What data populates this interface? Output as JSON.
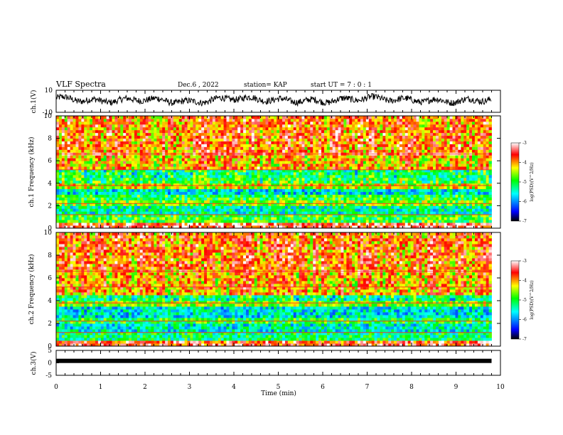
{
  "header": {
    "title": "VLF Spectra",
    "date": "Dec.6 , 2022",
    "station": "station= KAP",
    "start_ut": "start UT = 7 : 0 : 1"
  },
  "colors": {
    "waveform": "#000000",
    "colormap": [
      "#000000",
      "#0000ff",
      "#00ffff",
      "#00ff00",
      "#ffff00",
      "#ff0000",
      "#ffffff"
    ]
  },
  "chart_data": [
    {
      "type": "line",
      "panel": "ch1-waveform",
      "ylabel": "ch.1(V)",
      "ylim": [
        -10,
        10
      ],
      "ytick_labels": [
        "-10",
        "10"
      ],
      "xlim": [
        0,
        10
      ],
      "x_unit": "min",
      "series": [
        {
          "x": [
            0,
            1,
            2,
            3,
            4,
            5,
            6,
            7,
            8,
            9,
            9.8
          ],
          "y": [
            3,
            0,
            2,
            -1,
            3,
            1,
            0,
            3,
            1,
            0,
            2
          ]
        }
      ],
      "grid": false
    },
    {
      "type": "heatmap",
      "panel": "ch1-spectrogram",
      "ylabel": "ch.1\nFrequency (kHz)",
      "ylim": [
        0,
        10
      ],
      "ytick_labels": [
        "0",
        "2",
        "4",
        "6",
        "8",
        "10"
      ],
      "xlim": [
        0,
        9.8
      ],
      "value_range": [
        -7,
        -3
      ],
      "bands_khz": [
        {
          "from": 0.0,
          "to": 0.6,
          "level": -3.4
        },
        {
          "from": 0.6,
          "to": 1.2,
          "level": -4.9
        },
        {
          "from": 1.2,
          "to": 2.0,
          "level": -5.4
        },
        {
          "from": 2.0,
          "to": 2.4,
          "level": -4.7
        },
        {
          "from": 2.4,
          "to": 3.0,
          "level": -5.0
        },
        {
          "from": 3.0,
          "to": 3.6,
          "level": -5.6
        },
        {
          "from": 3.6,
          "to": 4.0,
          "level": -4.4
        },
        {
          "from": 4.0,
          "to": 4.6,
          "level": -4.8
        },
        {
          "from": 4.6,
          "to": 5.2,
          "level": -5.0
        },
        {
          "from": 5.2,
          "to": 5.6,
          "level": -3.8
        },
        {
          "from": 5.6,
          "to": 6.4,
          "level": -4.0
        },
        {
          "from": 6.4,
          "to": 6.8,
          "level": -3.5
        },
        {
          "from": 6.8,
          "to": 10.0,
          "level": -3.7
        }
      ]
    },
    {
      "type": "heatmap",
      "panel": "ch2-spectrogram",
      "ylabel": "ch.2\nFrequency (kHz)",
      "ylim": [
        0,
        10
      ],
      "ytick_labels": [
        "0",
        "2",
        "4",
        "6",
        "8",
        "10"
      ],
      "xlim": [
        0,
        9.8
      ],
      "value_range": [
        -7,
        -3
      ],
      "bands_khz": [
        {
          "from": 0.0,
          "to": 0.4,
          "level": -3.6
        },
        {
          "from": 0.4,
          "to": 1.2,
          "level": -5.2
        },
        {
          "from": 1.2,
          "to": 2.0,
          "level": -5.5
        },
        {
          "from": 2.0,
          "to": 2.6,
          "level": -5.0
        },
        {
          "from": 2.6,
          "to": 3.4,
          "level": -5.6
        },
        {
          "from": 3.4,
          "to": 4.0,
          "level": -4.6
        },
        {
          "from": 4.0,
          "to": 4.6,
          "level": -5.1
        },
        {
          "from": 4.6,
          "to": 6.4,
          "level": -3.9
        },
        {
          "from": 6.4,
          "to": 10.0,
          "level": -3.7
        }
      ]
    },
    {
      "type": "line",
      "panel": "ch3-waveform",
      "ylabel": "ch.3(V)",
      "ylim": [
        -5,
        5
      ],
      "ytick_labels": [
        "-5",
        "0",
        "5"
      ],
      "xlim": [
        0,
        10
      ],
      "series": [
        {
          "x": [
            0,
            9.8
          ],
          "y": [
            0.8,
            0.8
          ]
        }
      ],
      "xlabel": "Time (min)",
      "xtick_labels": [
        "0",
        "1",
        "2",
        "3",
        "4",
        "5",
        "6",
        "7",
        "8",
        "9",
        "10"
      ]
    }
  ],
  "colorbars": [
    {
      "label": "log(PSD)(V^2/Hz)",
      "tick_labels": [
        "-3",
        "-4",
        "-5",
        "-6",
        "-7"
      ],
      "range": [
        -7,
        -3
      ]
    },
    {
      "label": "log(PSD)(V^2/Hz)",
      "tick_labels": [
        "-3",
        "-4",
        "-5",
        "-6",
        "-7"
      ],
      "range": [
        -7,
        -3
      ]
    }
  ]
}
